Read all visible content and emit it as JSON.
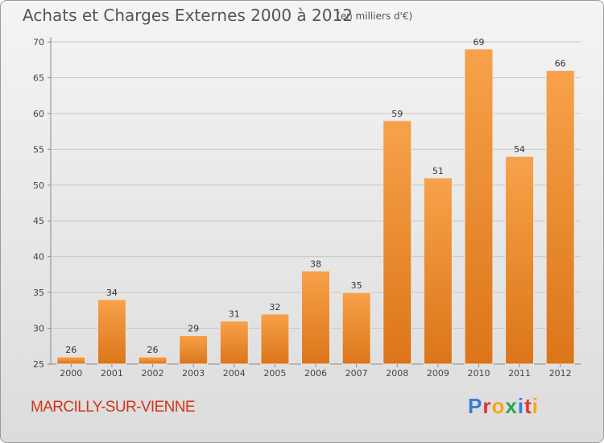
{
  "header": {
    "title": "Achats et Charges Externes 2000 à 2012",
    "subtitle": "(en milliers d'€)"
  },
  "footer": {
    "commune": "MARCILLY-SUR-VIENNE",
    "logo_letters": [
      {
        "ch": "P",
        "color": "#3a7bd5"
      },
      {
        "ch": "r",
        "color": "#e2342f"
      },
      {
        "ch": "o",
        "color": "#f3a81c"
      },
      {
        "ch": "x",
        "color": "#2aa84a"
      },
      {
        "ch": "i",
        "color": "#3a7bd5"
      },
      {
        "ch": "t",
        "color": "#e2342f"
      },
      {
        "ch": "i",
        "color": "#f3a81c"
      }
    ]
  },
  "chart_data": {
    "type": "bar",
    "title": "Achats et Charges Externes 2000 à 2012",
    "subtitle": "(en milliers d'€)",
    "xlabel": "",
    "ylabel": "",
    "categories": [
      "2000",
      "2001",
      "2002",
      "2003",
      "2004",
      "2005",
      "2006",
      "2007",
      "2008",
      "2009",
      "2010",
      "2011",
      "2012"
    ],
    "values": [
      26,
      34,
      26,
      29,
      31,
      32,
      38,
      35,
      59,
      51,
      69,
      54,
      66
    ],
    "ylim": [
      25,
      70
    ],
    "yticks": [
      25,
      30,
      35,
      40,
      45,
      50,
      55,
      60,
      65,
      70
    ],
    "grid": true,
    "bar_color": "#f0922e"
  }
}
